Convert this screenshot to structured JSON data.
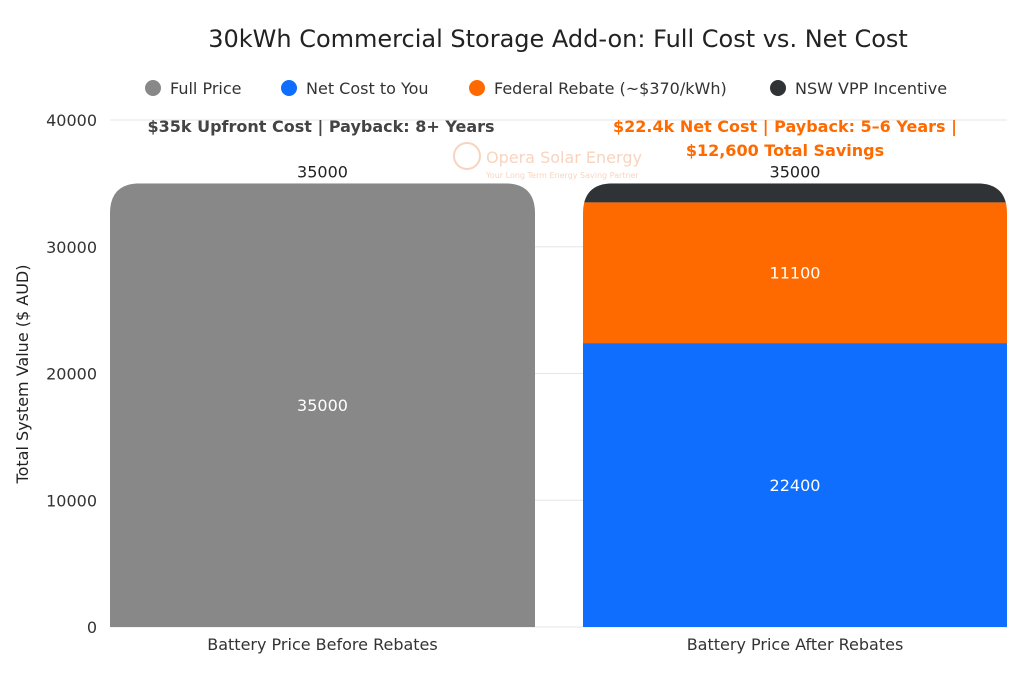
{
  "chart_data": {
    "type": "bar",
    "stacked": true,
    "title": "30kWh Commercial Storage Add-on: Full Cost vs. Net Cost",
    "xlabel": "",
    "ylabel": "Total System Value ($ AUD)",
    "ylim": [
      0,
      40000
    ],
    "yticks": [
      "0",
      "10000",
      "20000",
      "30000",
      "40000"
    ],
    "grid": true,
    "legend_position": "top",
    "categories": [
      "Battery Price Before Rebates",
      "Battery Price After Rebates"
    ],
    "series": [
      {
        "name": "Full Price",
        "color": "#888888",
        "values": [
          35000,
          0
        ]
      },
      {
        "name": "Net Cost to You",
        "color": "#0f6efd",
        "values": [
          0,
          22400
        ]
      },
      {
        "name": "Federal Rebate (~$370/kWh)",
        "color": "#ff6a00",
        "values": [
          0,
          11100
        ]
      },
      {
        "name": "NSW VPP Incentive",
        "color": "#2f3335",
        "values": [
          0,
          1500
        ]
      }
    ],
    "totals": [
      "35000",
      "35000"
    ],
    "annotations": [
      {
        "lines": [
          "$35k Upfront Cost | Payback: 8+ Years"
        ],
        "color": "#444444"
      },
      {
        "lines": [
          "$22.4k Net Cost | Payback: 5–6 Years |",
          "$12,600 Total Savings"
        ],
        "color": "#ff6a00"
      }
    ]
  },
  "watermark": {
    "name": "Opera Solar Energy",
    "tagline": "Your Long Term Energy Saving Partner"
  }
}
